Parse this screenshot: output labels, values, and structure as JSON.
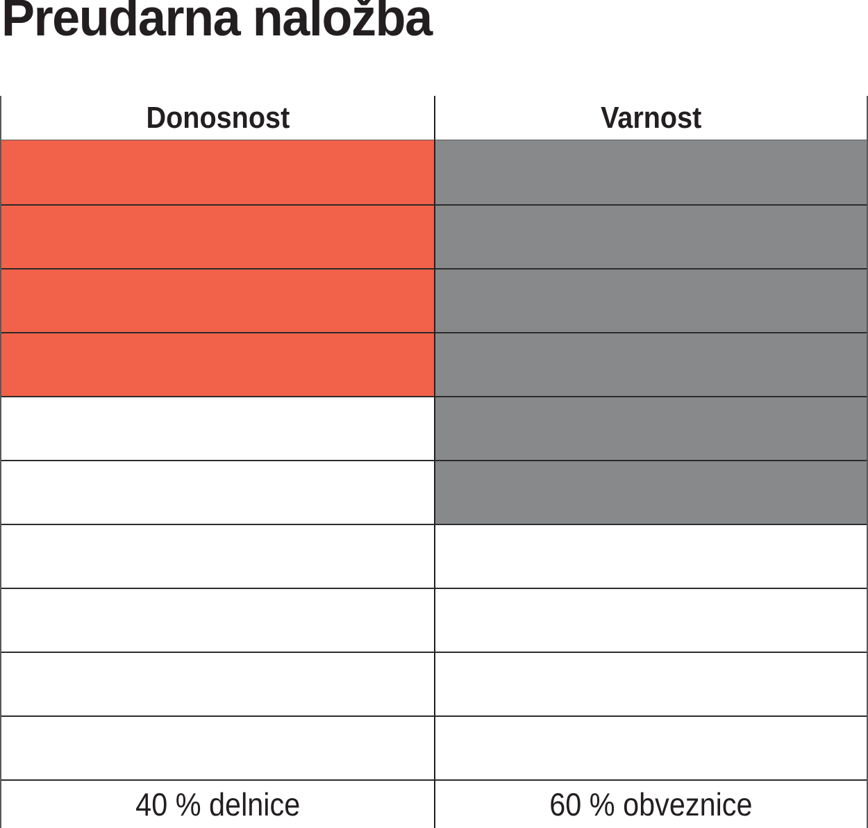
{
  "title": "Preudarna naložba",
  "table": {
    "headers": [
      "Donosnost",
      "Varnost"
    ],
    "footers": [
      "40 % delnice",
      "60 % obveznice"
    ]
  },
  "colors": {
    "donosnost_fill": "#F2614A",
    "varnost_fill": "#88898B",
    "grid_line": "#2B2B2B",
    "outer_border": "#58595B",
    "text": "#231F20"
  },
  "chart_data": {
    "type": "table",
    "title": "Preudarna naložba",
    "rows_total": 10,
    "columns": [
      {
        "key": "donosnost",
        "header": "Donosnost",
        "filled_rows": 4,
        "fill_color": "#F2614A",
        "footer": "40 % delnice"
      },
      {
        "key": "varnost",
        "header": "Varnost",
        "filled_rows": 6,
        "fill_color": "#88898B",
        "footer": "60 % obveznice"
      }
    ],
    "layout": {
      "legend": "none",
      "grid": "on",
      "orientation": "vertical-fill-from-top"
    }
  }
}
